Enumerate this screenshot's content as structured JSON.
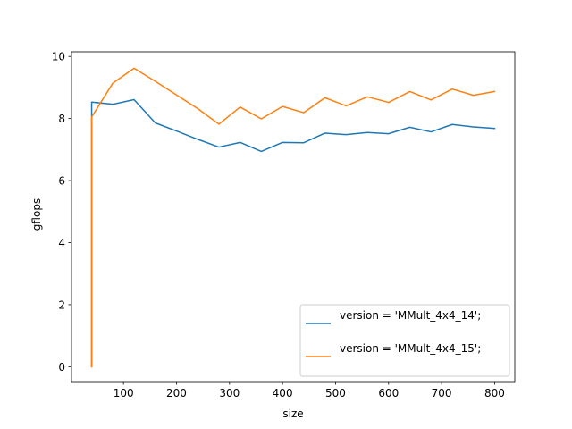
{
  "chart_data": {
    "type": "line",
    "title": "",
    "xlabel": "size",
    "ylabel": "gflops",
    "xlim": [
      2,
      838
    ],
    "ylim": [
      -0.48,
      10.15
    ],
    "xticks": [
      100,
      200,
      300,
      400,
      500,
      600,
      700,
      800
    ],
    "yticks": [
      0,
      2,
      4,
      6,
      8,
      10
    ],
    "grid": false,
    "legend_position": "lower-right",
    "series": [
      {
        "name": "version = 'MMult_4x4_14';",
        "color": "#1f77b4",
        "x": [
          40,
          40,
          80,
          120,
          160,
          200,
          240,
          280,
          320,
          360,
          400,
          440,
          480,
          520,
          560,
          600,
          640,
          680,
          720,
          760,
          800
        ],
        "y": [
          0,
          8.53,
          8.46,
          8.61,
          7.86,
          7.6,
          7.33,
          7.08,
          7.23,
          6.94,
          7.23,
          7.22,
          7.53,
          7.48,
          7.55,
          7.51,
          7.72,
          7.57,
          7.81,
          7.73,
          7.68
        ]
      },
      {
        "name": "version = 'MMult_4x4_15';",
        "color": "#ff7f0e",
        "x": [
          40,
          40,
          80,
          120,
          160,
          200,
          240,
          280,
          320,
          360,
          400,
          440,
          480,
          520,
          560,
          600,
          640,
          680,
          720,
          760,
          800
        ],
        "y": [
          0,
          8.05,
          9.14,
          9.62,
          9.2,
          8.76,
          8.32,
          7.82,
          8.37,
          7.99,
          8.39,
          8.19,
          8.67,
          8.41,
          8.7,
          8.52,
          8.87,
          8.6,
          8.95,
          8.75,
          8.87
        ]
      }
    ]
  }
}
